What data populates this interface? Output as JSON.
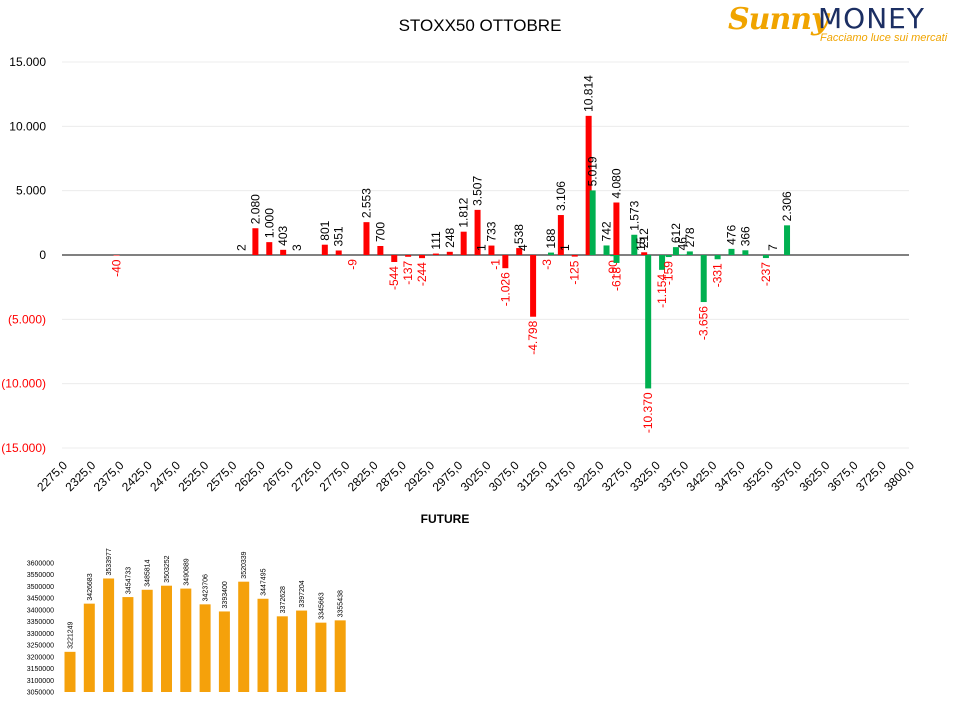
{
  "title": "STOXX50 OTTOBRE",
  "logo": {
    "brand_a": "Sunny",
    "brand_b": "MONEY",
    "tagline": "Facciamo luce sui mercati"
  },
  "colors": {
    "pos": "#ff0000",
    "neg": "#00b050",
    "future": "#f5a10b",
    "axis_neg_text": "#ff0000"
  },
  "chart_data": [
    {
      "type": "bar",
      "title": "STOXX50 OTTOBRE",
      "ylim": [
        -15000,
        15000
      ],
      "yticks": [
        15000,
        10000,
        5000,
        0,
        -5000,
        -10000,
        -15000
      ],
      "ytick_labels": [
        "15.000",
        "10.000",
        "5.000",
        "0",
        "(5.000)",
        "(10.000)",
        "(15.000)"
      ],
      "xticks": [
        "2275,0",
        "2325,0",
        "2375,0",
        "2425,0",
        "2475,0",
        "2525,0",
        "2575,0",
        "2625,0",
        "2675,0",
        "2725,0",
        "2775,0",
        "2825,0",
        "2875,0",
        "2925,0",
        "2975,0",
        "3025,0",
        "3075,0",
        "3125,0",
        "3175,0",
        "3225,0",
        "3275,0",
        "3325,0",
        "3375,0",
        "3425,0",
        "3475,0",
        "3525,0",
        "3575,0",
        "3625,0",
        "3675,0",
        "3725,0",
        "3800,0"
      ],
      "grid": true,
      "series": [
        {
          "color": "red",
          "points": [
            {
              "x": 2375,
              "value": -40,
              "label": "-40"
            },
            {
              "x": 2600,
              "value": 2,
              "label": "2"
            },
            {
              "x": 2625,
              "value": 2080,
              "label": "2.080"
            },
            {
              "x": 2650,
              "value": 1000,
              "label": "1.000"
            },
            {
              "x": 2675,
              "value": 403,
              "label": "403"
            },
            {
              "x": 2700,
              "value": 3,
              "label": "3"
            },
            {
              "x": 2750,
              "value": 801,
              "label": "801"
            },
            {
              "x": 2775,
              "value": 351,
              "label": "351"
            },
            {
              "x": 2800,
              "value": -9,
              "label": "-9"
            },
            {
              "x": 2825,
              "value": 2553,
              "label": "2.553"
            },
            {
              "x": 2850,
              "value": 700,
              "label": "700"
            },
            {
              "x": 2875,
              "value": -544,
              "label": "-544"
            },
            {
              "x": 2900,
              "value": -137,
              "label": "-137"
            },
            {
              "x": 2925,
              "value": -244,
              "label": "-244"
            },
            {
              "x": 2950,
              "value": 111,
              "label": "111"
            },
            {
              "x": 2975,
              "value": 248,
              "label": "248"
            },
            {
              "x": 3000,
              "value": 1812,
              "label": "1.812"
            },
            {
              "x": 3025,
              "value": 3507,
              "label": "3.507"
            },
            {
              "x": 3050,
              "value": 733,
              "label": "733"
            },
            {
              "x": 3075,
              "value": -1026,
              "label": "-1.026"
            },
            {
              "x": 3100,
              "value": 538,
              "label": "538"
            },
            {
              "x": 3125,
              "value": -4798,
              "label": "-4.798"
            },
            {
              "x": 3150,
              "value": -3,
              "label": "-3"
            },
            {
              "x": 3175,
              "value": 3106,
              "label": "3.106"
            },
            {
              "x": 3200,
              "value": -125,
              "label": "-125"
            },
            {
              "x": 3225,
              "value": 10814,
              "label": "10.814"
            },
            {
              "x": 3275,
              "value": 4080,
              "label": "4.080"
            },
            {
              "x": 3325,
              "value": 212,
              "label": "212"
            }
          ]
        },
        {
          "color": "green",
          "points": [
            {
              "x": 2925,
              "value": 0,
              "label": ""
            },
            {
              "x": 3000,
              "value": 0,
              "label": ""
            },
            {
              "x": 3025,
              "value": 1,
              "label": "1"
            },
            {
              "x": 3050,
              "value": -1,
              "label": "-1"
            },
            {
              "x": 3100,
              "value": 4,
              "label": "4"
            },
            {
              "x": 3150,
              "value": 188,
              "label": "188"
            },
            {
              "x": 3175,
              "value": 1,
              "label": "1"
            },
            {
              "x": 3225,
              "value": 5019,
              "label": "5.019"
            },
            {
              "x": 3250,
              "value": 742,
              "label": "742"
            },
            {
              "x": 3262,
              "value": -90,
              "label": "-90"
            },
            {
              "x": 3268,
              "value": -618,
              "label": "-618"
            },
            {
              "x": 3300,
              "value": 1573,
              "label": "1.573"
            },
            {
              "x": 3312,
              "value": 15,
              "label": "15"
            },
            {
              "x": 3325,
              "value": -10370,
              "label": "-10.370"
            },
            {
              "x": 3350,
              "value": -1154,
              "label": "-1.154"
            },
            {
              "x": 3362,
              "value": -159,
              "label": "-159"
            },
            {
              "x": 3375,
              "value": 612,
              "label": "612"
            },
            {
              "x": 3387,
              "value": 46,
              "label": "46"
            },
            {
              "x": 3400,
              "value": 278,
              "label": "278"
            },
            {
              "x": 3425,
              "value": -3656,
              "label": "-3.656"
            },
            {
              "x": 3450,
              "value": -331,
              "label": "-331"
            },
            {
              "x": 3475,
              "value": 476,
              "label": "476"
            },
            {
              "x": 3500,
              "value": 366,
              "label": "366"
            },
            {
              "x": 3537,
              "value": -237,
              "label": "-237"
            },
            {
              "x": 3550,
              "value": 7,
              "label": "7"
            },
            {
              "x": 3575,
              "value": 2306,
              "label": "2.306"
            }
          ]
        }
      ]
    },
    {
      "type": "bar",
      "title": "FUTURE",
      "ylim": [
        3050000,
        3600000
      ],
      "yticks": [
        3600000,
        3550000,
        3500000,
        3450000,
        3400000,
        3350000,
        3300000,
        3250000,
        3200000,
        3150000,
        3100000,
        3050000
      ],
      "values": [
        3221249,
        3426683,
        3533977,
        3454733,
        3485814,
        3503252,
        3490889,
        3423706,
        3393400,
        3520339,
        3447495,
        3372628,
        3397204,
        3345663,
        3355438
      ]
    }
  ]
}
